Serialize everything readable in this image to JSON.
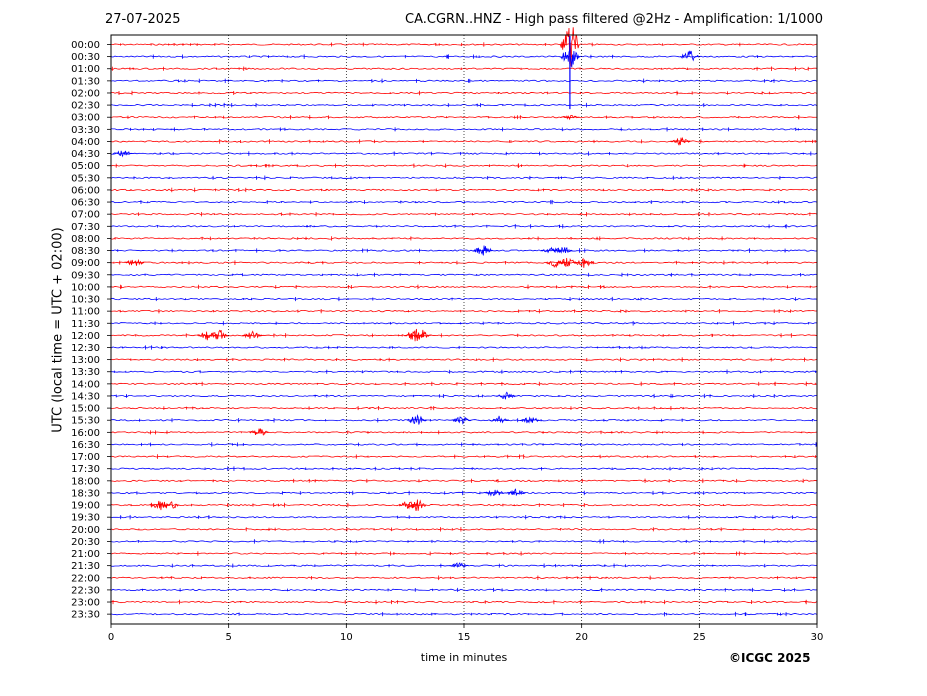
{
  "header": {
    "date": "27-07-2025",
    "title": "CA.CGRN..HNZ - High pass filtered @2Hz - Amplification: 1/1000"
  },
  "footer": {
    "copyright": "©ICGC 2025"
  },
  "colors": {
    "even_row": "#ff0000",
    "odd_row": "#0000ff",
    "grid": "#000000"
  },
  "chart_data": {
    "type": "line",
    "chart_kind": "helicorder",
    "xlabel": "time in minutes",
    "ylabel": "UTC (local time = UTC + 02:00)",
    "xlim": [
      0,
      30
    ],
    "x_ticks": [
      0,
      5,
      10,
      15,
      20,
      25,
      30
    ],
    "grid": "vertical dotted lines at 5, 10, 15, 20, 25",
    "rows": [
      "00:00",
      "00:30",
      "01:00",
      "01:30",
      "02:00",
      "02:30",
      "03:00",
      "03:30",
      "04:00",
      "04:30",
      "05:00",
      "05:30",
      "06:00",
      "06:30",
      "07:00",
      "07:30",
      "08:00",
      "08:30",
      "09:00",
      "09:30",
      "10:00",
      "10:30",
      "11:00",
      "11:30",
      "12:00",
      "12:30",
      "13:00",
      "13:30",
      "14:00",
      "14:30",
      "15:00",
      "15:30",
      "16:00",
      "16:30",
      "17:00",
      "17:30",
      "18:00",
      "18:30",
      "19:00",
      "19:30",
      "20:00",
      "20:30",
      "21:00",
      "21:30",
      "22:00",
      "22:30",
      "23:00",
      "23:30"
    ],
    "row_colors": "alternating red / blue",
    "events": [
      {
        "row": "00:00",
        "minute": 19.5,
        "amplitude": 12
      },
      {
        "row": "00:30",
        "minute": 19.5,
        "amplitude": 6
      },
      {
        "row": "00:30",
        "minute": 24.6,
        "amplitude": 3
      },
      {
        "row": "03:00",
        "minute": 19.5,
        "amplitude": 1
      },
      {
        "row": "04:00",
        "minute": 24.2,
        "amplitude": 2
      },
      {
        "row": "04:30",
        "minute": 0.5,
        "amplitude": 2
      },
      {
        "row": "08:30",
        "minute": 15.8,
        "amplitude": 3
      },
      {
        "row": "08:30",
        "minute": 18.7,
        "amplitude": 2
      },
      {
        "row": "08:30",
        "minute": 19.2,
        "amplitude": 2
      },
      {
        "row": "09:00",
        "minute": 1.0,
        "amplitude": 2
      },
      {
        "row": "09:00",
        "minute": 18.9,
        "amplitude": 2.5
      },
      {
        "row": "09:00",
        "minute": 19.4,
        "amplitude": 2.5
      },
      {
        "row": "09:00",
        "minute": 20.1,
        "amplitude": 2.5
      },
      {
        "row": "12:00",
        "minute": 4.1,
        "amplitude": 2.5
      },
      {
        "row": "12:00",
        "minute": 4.6,
        "amplitude": 3
      },
      {
        "row": "12:00",
        "minute": 6.0,
        "amplitude": 2
      },
      {
        "row": "12:00",
        "minute": 12.9,
        "amplitude": 4
      },
      {
        "row": "12:00",
        "minute": 13.2,
        "amplitude": 3
      },
      {
        "row": "14:30",
        "minute": 16.8,
        "amplitude": 2
      },
      {
        "row": "15:30",
        "minute": 13.0,
        "amplitude": 3
      },
      {
        "row": "15:30",
        "minute": 14.9,
        "amplitude": 2
      },
      {
        "row": "15:30",
        "minute": 16.5,
        "amplitude": 2
      },
      {
        "row": "15:30",
        "minute": 17.8,
        "amplitude": 2
      },
      {
        "row": "16:00",
        "minute": 6.3,
        "amplitude": 2
      },
      {
        "row": "18:30",
        "minute": 16.3,
        "amplitude": 2
      },
      {
        "row": "18:30",
        "minute": 17.2,
        "amplitude": 2
      },
      {
        "row": "19:00",
        "minute": 2.1,
        "amplitude": 2.5
      },
      {
        "row": "19:00",
        "minute": 2.5,
        "amplitude": 2.5
      },
      {
        "row": "19:00",
        "minute": 12.7,
        "amplitude": 3
      },
      {
        "row": "19:00",
        "minute": 13.0,
        "amplitude": 3
      },
      {
        "row": "21:30",
        "minute": 14.8,
        "amplitude": 1.5
      }
    ]
  }
}
